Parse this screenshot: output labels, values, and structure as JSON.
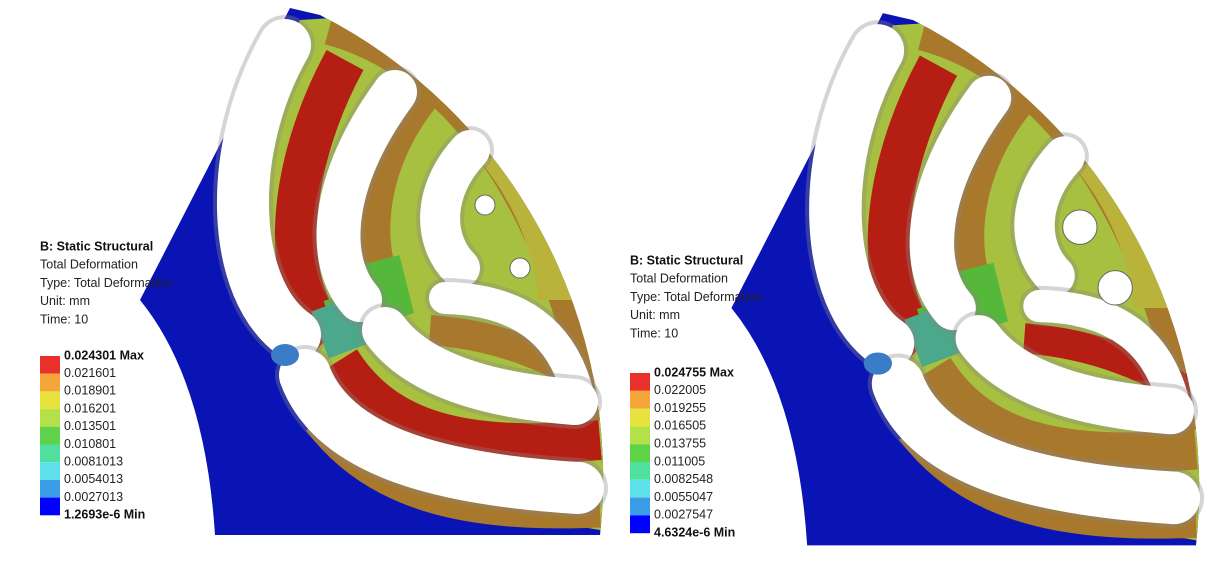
{
  "panels": [
    {
      "title": "B: Static Structural",
      "lines": [
        "Total Deformation",
        "Type: Total Deformation",
        "Unit: mm",
        "Time: 10"
      ],
      "legend": [
        "0.024301 Max",
        "0.021601",
        "0.018901",
        "0.016201",
        "0.013501",
        "0.010801",
        "0.0081013",
        "0.0054013",
        "0.0027013",
        "1.2693e-6 Min"
      ]
    },
    {
      "title": "B: Static Structural",
      "lines": [
        "Total Deformation",
        "Type: Total Deformation",
        "Unit: mm",
        "Time: 10"
      ],
      "legend": [
        "0.024755 Max",
        "0.022005",
        "0.019255",
        "0.016505",
        "0.013755",
        "0.011005",
        "0.0082548",
        "0.0055047",
        "0.0027547",
        "4.6324e-6 Min"
      ]
    }
  ]
}
